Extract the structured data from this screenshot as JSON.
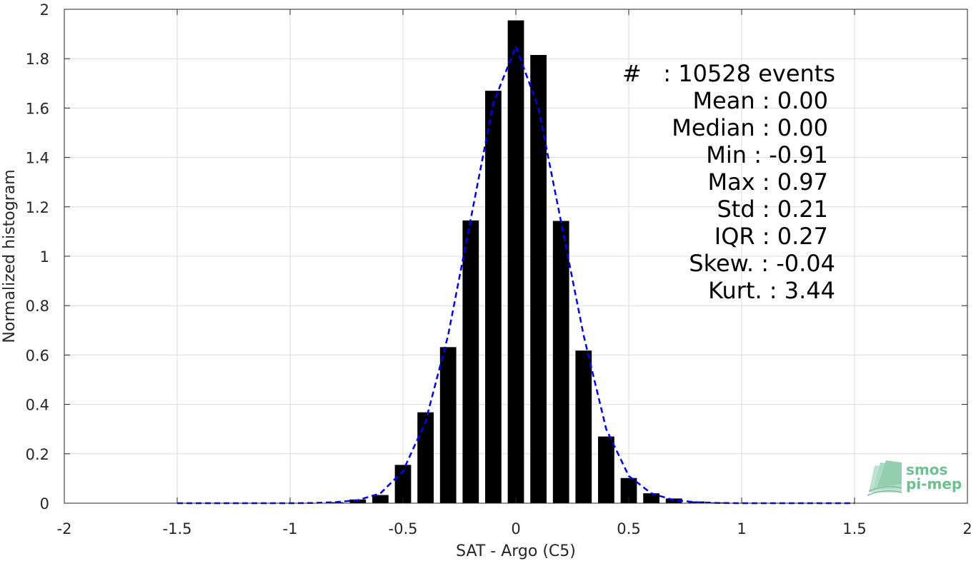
{
  "chart_data": {
    "type": "bar",
    "xlabel": "SAT - Argo (C5)",
    "ylabel": "Normalized histogram",
    "xlim": [
      -2,
      2
    ],
    "ylim": [
      0,
      2
    ],
    "grid": true,
    "x_ticks": [
      -2,
      -1.5,
      -1,
      -0.5,
      0,
      0.5,
      1,
      1.5,
      2
    ],
    "x_tick_labels": [
      "-2",
      "-1.5",
      "-1",
      "-0.5",
      "0",
      "0.5",
      "1",
      "1.5",
      "2"
    ],
    "y_ticks": [
      0,
      0.2,
      0.4,
      0.6,
      0.8,
      1,
      1.2,
      1.4,
      1.6,
      1.8,
      2
    ],
    "y_tick_labels": [
      "0",
      "0.2",
      "0.4",
      "0.6",
      "0.8",
      "1",
      "1.2",
      "1.4",
      "1.6",
      "1.8",
      "2"
    ],
    "bar_color": "#000000",
    "bin_width": 0.1,
    "bars": {
      "x": [
        -1.4,
        -1.3,
        -1.2,
        -1.1,
        -1.0,
        -0.9,
        -0.8,
        -0.7,
        -0.6,
        -0.5,
        -0.4,
        -0.3,
        -0.2,
        -0.1,
        0.0,
        0.1,
        0.2,
        0.3,
        0.4,
        0.5,
        0.6,
        0.7,
        0.8,
        0.9
      ],
      "values": [
        0,
        0,
        0,
        0,
        0,
        0.001,
        0.004,
        0.015,
        0.033,
        0.155,
        0.368,
        0.632,
        1.145,
        1.67,
        1.955,
        1.815,
        1.143,
        0.618,
        0.27,
        0.102,
        0.04,
        0.019,
        0.007,
        0.003
      ]
    },
    "fit_curve": {
      "color": "#0000ff",
      "style": "dashed",
      "x": [
        -1.5,
        -1.4,
        -1.3,
        -1.2,
        -1.1,
        -1.0,
        -0.9,
        -0.8,
        -0.7,
        -0.6,
        -0.5,
        -0.4,
        -0.3,
        -0.2,
        -0.1,
        0.0,
        0.1,
        0.2,
        0.3,
        0.4,
        0.5,
        0.6,
        0.7,
        0.8,
        0.9,
        1.0,
        1.1,
        1.2,
        1.3,
        1.4,
        1.5
      ],
      "y": [
        0,
        0,
        0,
        0,
        0,
        0,
        0.001,
        0.004,
        0.012,
        0.04,
        0.13,
        0.33,
        0.68,
        1.15,
        1.62,
        1.85,
        1.6,
        1.14,
        0.68,
        0.3,
        0.11,
        0.04,
        0.012,
        0.004,
        0.001,
        0,
        0,
        0,
        0,
        0,
        0
      ]
    },
    "annotations": [
      "#   : 10528 events",
      "Mean : 0.00",
      "Median : 0.00",
      "Min : -0.91",
      "Max : 0.97",
      "Std : 0.21",
      "IQR : 0.27",
      "Skew. : -0.04",
      "Kurt. : 3.44"
    ]
  },
  "logo": {
    "line1": "smos",
    "line2": "pi-mep",
    "color": "#6fbf93"
  }
}
